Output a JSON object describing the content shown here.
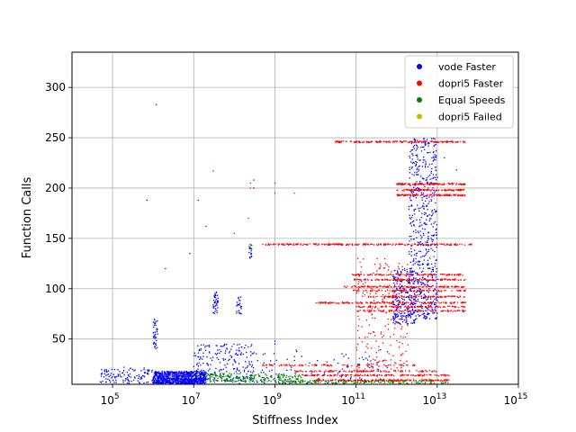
{
  "chart_data": {
    "type": "scatter",
    "title": "",
    "xlabel": "Stiffness Index",
    "ylabel": "Function Calls",
    "x_scale": "log",
    "xlim": [
      10000,
      1000000000000000.0
    ],
    "ylim": [
      5,
      335
    ],
    "x_ticks": [
      {
        "value": 100000,
        "base": "10",
        "exp": "5"
      },
      {
        "value": 10000000,
        "base": "10",
        "exp": "7"
      },
      {
        "value": 1000000000,
        "base": "10",
        "exp": "9"
      },
      {
        "value": 100000000000,
        "base": "10",
        "exp": "11"
      },
      {
        "value": 10000000000000,
        "base": "10",
        "exp": "13"
      },
      {
        "value": 1000000000000000,
        "base": "10",
        "exp": "15"
      }
    ],
    "y_ticks": [
      {
        "value": 50,
        "label": "50"
      },
      {
        "value": 100,
        "label": "100"
      },
      {
        "value": 150,
        "label": "150"
      },
      {
        "value": 200,
        "label": "200"
      },
      {
        "value": 250,
        "label": "250"
      },
      {
        "value": 300,
        "label": "300"
      }
    ],
    "grid": true,
    "legend_position": "top-right",
    "series": [
      {
        "name": "vode Faster",
        "color": "#0000ff",
        "clusters": [
          {
            "x": [
              1000000.0,
              20000000.0
            ],
            "y": [
              6,
              18
            ],
            "n": 900
          },
          {
            "x": [
              50000.0,
              1000000.0
            ],
            "y": [
              6,
              22
            ],
            "n": 120
          },
          {
            "x": [
              10000000.0,
              300000000.0
            ],
            "y": [
              8,
              45
            ],
            "n": 200
          },
          {
            "x": [
              2000000000000.0,
              10000000000000.0
            ],
            "y": [
              70,
              250
            ],
            "n": 600
          },
          {
            "x": [
              800000000000.0,
              3000000000000.0
            ],
            "y": [
              65,
              120
            ],
            "n": 250
          },
          {
            "x": [
              100000000.0,
              600000000000.0
            ],
            "y": [
              6,
              40
            ],
            "n": 120
          },
          {
            "x": [
              1000000.0,
              1300000.0
            ],
            "y": [
              40,
              70
            ],
            "n": 40
          },
          {
            "x": [
              30000000.0,
              40000000.0
            ],
            "y": [
              75,
              98
            ],
            "n": 40
          },
          {
            "x": [
              110000000.0,
              150000000.0
            ],
            "y": [
              75,
              92
            ],
            "n": 25
          },
          {
            "x": [
              230000000.0,
              270000000.0
            ],
            "y": [
              130,
              145
            ],
            "n": 15
          }
        ],
        "points": [
          [
            1200000.0,
            283
          ],
          [
            700000.0,
            188
          ],
          [
            13000000.0,
            188
          ],
          [
            20000000.0,
            162
          ],
          [
            2000000.0,
            120
          ],
          [
            8000000.0,
            135
          ],
          [
            300000000.0,
            200
          ],
          [
            300000000.0,
            208
          ],
          [
            1000000000.0,
            45
          ],
          [
            1000000000.0,
            48
          ],
          [
            15000000000000.0,
            230
          ],
          [
            30000000000000.0,
            218
          ]
        ]
      },
      {
        "name": "dopri5 Faster",
        "color": "#ff0000",
        "rows": [
          {
            "y": 246,
            "x": [
              30000000000.0,
              50000000000000.0
            ],
            "n": 180
          },
          {
            "y": 204,
            "x": [
              1000000000000.0,
              50000000000000.0
            ],
            "n": 140
          },
          {
            "y": 198,
            "x": [
              1000000000000.0,
              50000000000000.0
            ],
            "n": 110
          },
          {
            "y": 193,
            "x": [
              1000000000000.0,
              50000000000000.0
            ],
            "n": 110
          },
          {
            "y": 144,
            "x": [
              500000000.0,
              80000000000000.0
            ],
            "n": 240
          },
          {
            "y": 114,
            "x": [
              80000000000.0,
              50000000000000.0
            ],
            "n": 110
          },
          {
            "y": 109,
            "x": [
              80000000000.0,
              50000000000000.0
            ],
            "n": 120
          },
          {
            "y": 102,
            "x": [
              50000000000.0,
              50000000000000.0
            ],
            "n": 140
          },
          {
            "y": 98,
            "x": [
              80000000000.0,
              50000000000000.0
            ],
            "n": 100
          },
          {
            "y": 92,
            "x": [
              200000000000.0,
              50000000000000.0
            ],
            "n": 100
          },
          {
            "y": 86,
            "x": [
              10000000000.0,
              50000000000000.0
            ],
            "n": 160
          },
          {
            "y": 82,
            "x": [
              100000000000.0,
              50000000000000.0
            ],
            "n": 100
          },
          {
            "y": 78,
            "x": [
              100000000000.0,
              50000000000000.0
            ],
            "n": 90
          },
          {
            "y": 24,
            "x": [
              500000000.0,
              3000000000000.0
            ],
            "n": 90
          },
          {
            "y": 18,
            "x": [
              3000000000.0,
              10000000000000.0
            ],
            "n": 120
          },
          {
            "y": 14,
            "x": [
              5000000000.0,
              20000000000000.0
            ],
            "n": 140
          },
          {
            "y": 9,
            "x": [
              10000000000.0,
              20000000000000.0
            ],
            "n": 200
          }
        ],
        "clusters": [
          {
            "x": [
              100000000000.0,
              2000000000000.0
            ],
            "y": [
              20,
              130
            ],
            "n": 200
          }
        ],
        "points": [
          [
            30000000.0,
            217
          ],
          [
            250000000.0,
            200
          ],
          [
            250000000.0,
            205
          ],
          [
            1000000000.0,
            195
          ],
          [
            1000000000.0,
            205
          ],
          [
            3000000000.0,
            195
          ],
          [
            220000000.0,
            170
          ],
          [
            100000000.0,
            155
          ]
        ]
      },
      {
        "name": "Equal Speeds",
        "color": "#008000",
        "clusters": [
          {
            "x": [
              20000000.0,
              5000000000.0
            ],
            "y": [
              7,
              16
            ],
            "n": 220
          },
          {
            "x": [
              1000000000.0,
              20000000000000.0
            ],
            "y": [
              6,
              9
            ],
            "n": 160
          },
          {
            "x": [
              230000000.0,
              270000000.0
            ],
            "y": [
              138,
              145
            ],
            "n": 6
          }
        ]
      },
      {
        "name": "dopri5 Failed",
        "color": "#bfbf00",
        "clusters": [
          {
            "x": [
              100000000000.0,
              10000000000000.0
            ],
            "y": [
              6,
              8
            ],
            "n": 20
          }
        ]
      }
    ]
  }
}
